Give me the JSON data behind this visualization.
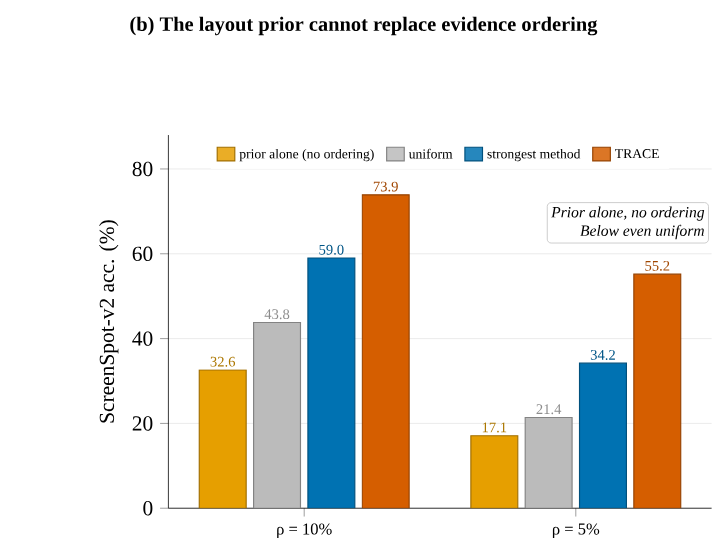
{
  "chart_data": {
    "type": "bar",
    "title": "(b) The layout prior cannot replace evidence ordering",
    "ylabel": "ScreenSpot-v2 acc. (%)",
    "categories": [
      "ρ = 10%",
      "ρ = 5%"
    ],
    "series": [
      {
        "name": "prior alone (no ordering)",
        "color": "#e69f00",
        "values": [
          32.6,
          17.1
        ],
        "value_labels": [
          "32.6",
          "17.1"
        ]
      },
      {
        "name": "uniform",
        "color": "#bbbbbb",
        "values": [
          43.8,
          21.4
        ],
        "value_labels": [
          "43.8",
          "21.4"
        ]
      },
      {
        "name": "strongest method",
        "color": "#0072b2",
        "values": [
          59.0,
          34.2
        ],
        "value_labels": [
          "59.0",
          "34.2"
        ]
      },
      {
        "name": "TRACE",
        "color": "#d55e00",
        "values": [
          73.9,
          55.2
        ],
        "value_labels": [
          "73.9",
          "55.2"
        ]
      }
    ],
    "ylim": [
      0,
      88
    ],
    "yticks": [
      0,
      20,
      40,
      60,
      80
    ],
    "grid": "y",
    "legend": "top",
    "annotations": [
      "Prior alone, no ordering",
      "Below even uniform"
    ]
  }
}
